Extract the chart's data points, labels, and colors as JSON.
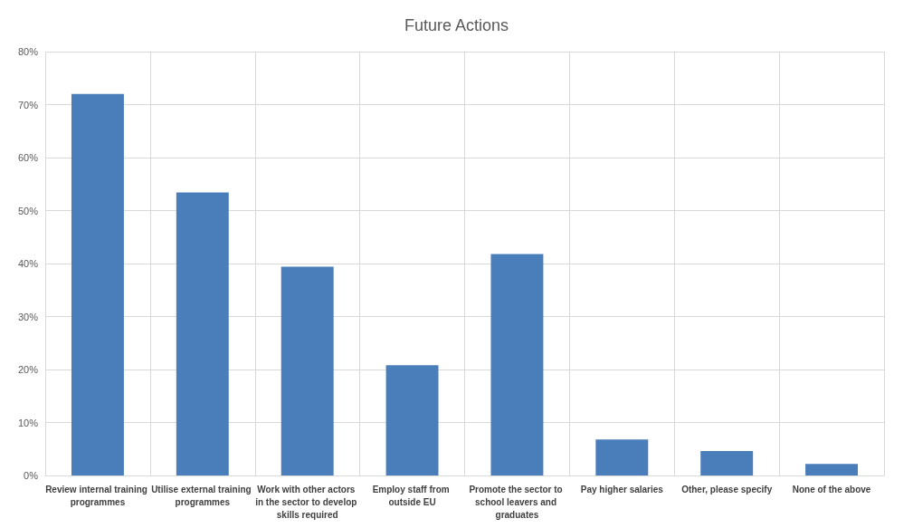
{
  "chart_data": {
    "type": "bar",
    "title": "Future Actions",
    "categories": [
      "Review internal training programmes",
      "Utilise external training programmes",
      "Work with other actors in the sector to develop skills required",
      "Employ staff from outside EU",
      "Promote the sector to school leavers and graduates",
      "Pay higher salaries",
      "Other, please specify",
      "None of the above"
    ],
    "values": [
      72,
      53.4,
      39.4,
      20.8,
      41.8,
      6.8,
      4.6,
      2.2
    ],
    "color": "#4a7ebb",
    "ylim": [
      0,
      80
    ],
    "yticks": [
      {
        "value": 0,
        "label": "0%"
      },
      {
        "value": 10,
        "label": "10%"
      },
      {
        "value": 20,
        "label": "20%"
      },
      {
        "value": 30,
        "label": "30%"
      },
      {
        "value": 40,
        "label": "40%"
      },
      {
        "value": 50,
        "label": "50%"
      },
      {
        "value": 60,
        "label": "60%"
      },
      {
        "value": 70,
        "label": "70%"
      },
      {
        "value": 80,
        "label": "80%"
      }
    ],
    "grid": true
  }
}
